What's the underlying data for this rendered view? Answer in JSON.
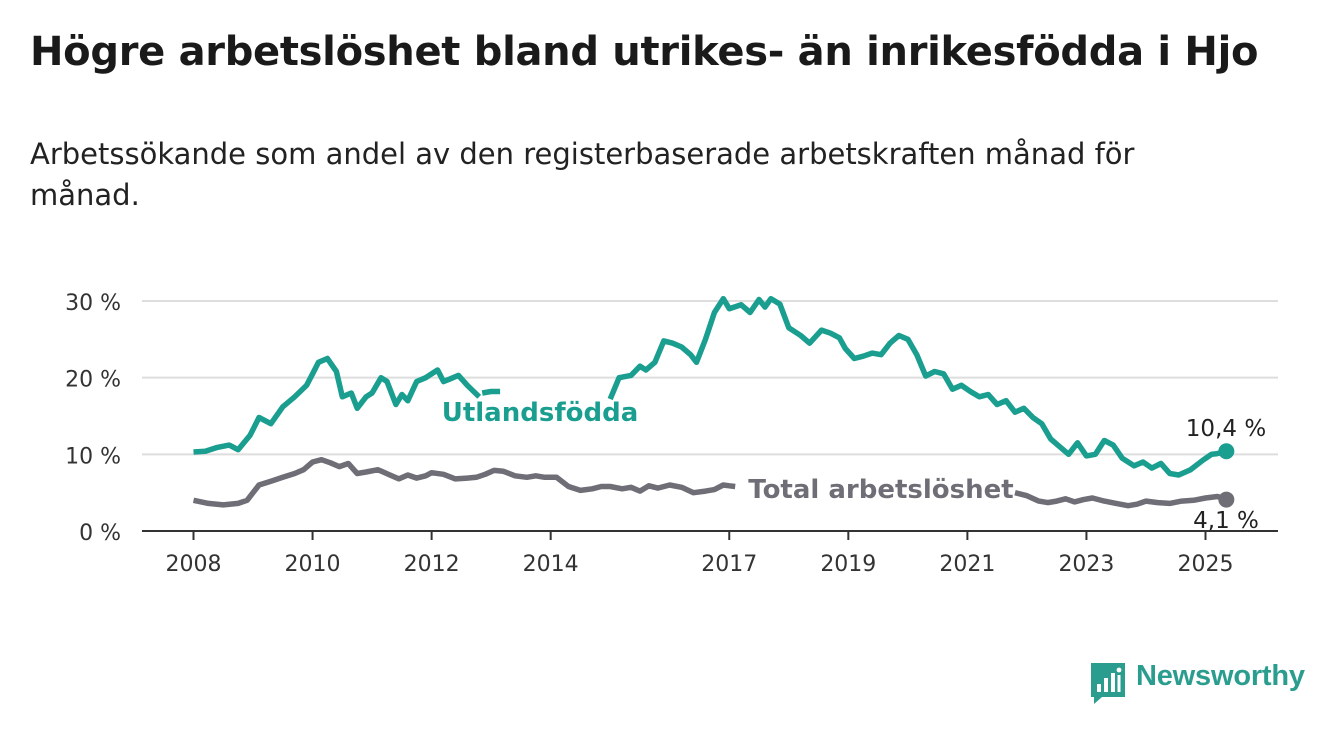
{
  "title": "Högre arbetslöshet bland utrikes- än inrikesfödda i Hjo",
  "subtitle": "Arbetssökande som andel av den registerbaserade arbetskraften månad för månad.",
  "brand": "Newsworthy",
  "colors": {
    "foreign_born": "#1a9e8f",
    "total": "#6f6e77",
    "grid": "#dedede",
    "axis": "#333333",
    "brand": "#2a9d8f"
  },
  "chart_data": {
    "type": "line",
    "title": "Högre arbetslöshet bland utrikes- än inrikesfödda i Hjo",
    "subtitle": "Arbetssökande som andel av den registerbaserade arbetskraften månad för månad.",
    "xlabel": "",
    "ylabel": "",
    "grid": true,
    "legend": "inline labels",
    "xlim": [
      2007.8,
      2026.2
    ],
    "ylim": [
      0,
      30
    ],
    "x_ticks": [
      2008,
      2010,
      2012,
      2014,
      2017,
      2019,
      2021,
      2023,
      2025
    ],
    "x_tick_labels": [
      "2008",
      "2010",
      "2012",
      "2014",
      "2017",
      "2019",
      "2021",
      "2023",
      "2025"
    ],
    "y_ticks": [
      0,
      10,
      20,
      30
    ],
    "y_tick_labels": [
      "0 %",
      "10 %",
      "20 %",
      "30 %"
    ],
    "series": [
      {
        "name": "Utlandsfödda",
        "end_label": "10,4 %",
        "points": [
          [
            2008.0,
            10.3
          ],
          [
            2008.2,
            10.4
          ],
          [
            2008.4,
            10.9
          ],
          [
            2008.6,
            11.2
          ],
          [
            2008.75,
            10.6
          ],
          [
            2008.95,
            12.5
          ],
          [
            2009.1,
            14.8
          ],
          [
            2009.3,
            14.0
          ],
          [
            2009.5,
            16.2
          ],
          [
            2009.7,
            17.5
          ],
          [
            2009.9,
            19.0
          ],
          [
            2010.0,
            20.5
          ],
          [
            2010.1,
            22.0
          ],
          [
            2010.25,
            22.5
          ],
          [
            2010.4,
            20.8
          ],
          [
            2010.5,
            17.5
          ],
          [
            2010.65,
            18.0
          ],
          [
            2010.75,
            16.0
          ],
          [
            2010.9,
            17.5
          ],
          [
            2011.0,
            18.0
          ],
          [
            2011.15,
            20.0
          ],
          [
            2011.25,
            19.5
          ],
          [
            2011.4,
            16.5
          ],
          [
            2011.5,
            17.8
          ],
          [
            2011.6,
            17.0
          ],
          [
            2011.75,
            19.5
          ],
          [
            2011.9,
            20.0
          ],
          [
            2012.0,
            20.5
          ],
          [
            2012.1,
            21.0
          ],
          [
            2012.2,
            19.5
          ],
          [
            2012.3,
            19.8
          ],
          [
            2012.45,
            20.3
          ],
          [
            2012.6,
            19.0
          ],
          [
            2012.8,
            17.5
          ],
          null,
          [
            2012.85,
            18.0
          ],
          [
            2013.0,
            18.2
          ],
          [
            2013.15,
            18.2
          ],
          null,
          [
            2015.0,
            17.2
          ],
          [
            2015.15,
            20.0
          ],
          [
            2015.35,
            20.3
          ],
          [
            2015.5,
            21.5
          ],
          [
            2015.6,
            21.0
          ],
          [
            2015.75,
            22.0
          ],
          [
            2015.9,
            24.8
          ],
          [
            2016.05,
            24.5
          ],
          [
            2016.2,
            24.0
          ],
          [
            2016.35,
            23.0
          ],
          [
            2016.45,
            22.0
          ],
          [
            2016.6,
            25.0
          ],
          [
            2016.75,
            28.5
          ],
          [
            2016.9,
            30.3
          ],
          [
            2017.0,
            29.0
          ],
          [
            2017.2,
            29.5
          ],
          [
            2017.35,
            28.5
          ],
          [
            2017.5,
            30.2
          ],
          [
            2017.6,
            29.2
          ],
          [
            2017.7,
            30.3
          ],
          [
            2017.85,
            29.6
          ],
          [
            2018.0,
            26.5
          ],
          [
            2018.2,
            25.5
          ],
          [
            2018.35,
            24.5
          ],
          [
            2018.55,
            26.2
          ],
          [
            2018.7,
            25.8
          ],
          [
            2018.85,
            25.2
          ],
          [
            2018.95,
            23.8
          ],
          [
            2019.1,
            22.5
          ],
          [
            2019.25,
            22.8
          ],
          [
            2019.4,
            23.2
          ],
          [
            2019.55,
            23.0
          ],
          [
            2019.7,
            24.5
          ],
          [
            2019.85,
            25.5
          ],
          [
            2020.0,
            25.0
          ],
          [
            2020.15,
            23.0
          ],
          [
            2020.3,
            20.2
          ],
          [
            2020.45,
            20.8
          ],
          [
            2020.6,
            20.5
          ],
          [
            2020.75,
            18.5
          ],
          [
            2020.9,
            19.0
          ],
          [
            2021.05,
            18.2
          ],
          [
            2021.2,
            17.5
          ],
          [
            2021.35,
            17.8
          ],
          [
            2021.5,
            16.5
          ],
          [
            2021.65,
            17.0
          ],
          [
            2021.8,
            15.5
          ],
          [
            2021.95,
            16.0
          ],
          [
            2022.1,
            14.8
          ],
          [
            2022.25,
            14.0
          ],
          [
            2022.4,
            12.0
          ],
          [
            2022.55,
            11.0
          ],
          [
            2022.7,
            10.0
          ],
          [
            2022.85,
            11.5
          ],
          [
            2023.0,
            9.8
          ],
          [
            2023.15,
            10.0
          ],
          [
            2023.3,
            11.8
          ],
          [
            2023.45,
            11.2
          ],
          [
            2023.6,
            9.5
          ],
          [
            2023.8,
            8.5
          ],
          [
            2023.95,
            9.0
          ],
          [
            2024.1,
            8.2
          ],
          [
            2024.25,
            8.8
          ],
          [
            2024.4,
            7.5
          ],
          [
            2024.55,
            7.3
          ],
          [
            2024.75,
            8.0
          ],
          [
            2024.95,
            9.2
          ],
          [
            2025.1,
            10.0
          ],
          [
            2025.2,
            10.1
          ],
          [
            2025.35,
            10.4
          ]
        ]
      },
      {
        "name": "Total arbetslöshet",
        "end_label": "4,1 %",
        "points": [
          [
            2008.0,
            4.0
          ],
          [
            2008.25,
            3.6
          ],
          [
            2008.5,
            3.4
          ],
          [
            2008.75,
            3.6
          ],
          [
            2008.9,
            4.0
          ],
          [
            2009.1,
            6.0
          ],
          [
            2009.3,
            6.5
          ],
          [
            2009.5,
            7.0
          ],
          [
            2009.7,
            7.5
          ],
          [
            2009.85,
            8.0
          ],
          [
            2010.0,
            9.0
          ],
          [
            2010.15,
            9.3
          ],
          [
            2010.3,
            8.9
          ],
          [
            2010.45,
            8.4
          ],
          [
            2010.6,
            8.8
          ],
          [
            2010.75,
            7.5
          ],
          [
            2010.9,
            7.7
          ],
          [
            2011.1,
            8.0
          ],
          [
            2011.3,
            7.3
          ],
          [
            2011.45,
            6.8
          ],
          [
            2011.6,
            7.3
          ],
          [
            2011.75,
            6.9
          ],
          [
            2011.9,
            7.2
          ],
          [
            2012.0,
            7.6
          ],
          [
            2012.2,
            7.4
          ],
          [
            2012.4,
            6.8
          ],
          [
            2012.6,
            6.9
          ],
          [
            2012.75,
            7.0
          ],
          [
            2012.9,
            7.4
          ],
          [
            2013.05,
            7.9
          ],
          [
            2013.2,
            7.8
          ],
          [
            2013.4,
            7.2
          ],
          [
            2013.6,
            7.0
          ],
          [
            2013.75,
            7.2
          ],
          [
            2013.9,
            7.0
          ],
          [
            2014.1,
            7.0
          ],
          [
            2014.3,
            5.8
          ],
          [
            2014.5,
            5.3
          ],
          [
            2014.7,
            5.5
          ],
          [
            2014.85,
            5.8
          ],
          [
            2015.0,
            5.8
          ],
          [
            2015.2,
            5.5
          ],
          [
            2015.35,
            5.7
          ],
          [
            2015.5,
            5.2
          ],
          [
            2015.65,
            5.9
          ],
          [
            2015.8,
            5.6
          ],
          [
            2016.0,
            6.0
          ],
          [
            2016.2,
            5.7
          ],
          [
            2016.4,
            5.0
          ],
          [
            2016.6,
            5.2
          ],
          [
            2016.75,
            5.4
          ],
          [
            2016.9,
            6.0
          ],
          [
            2017.0,
            5.9
          ],
          [
            2017.1,
            5.8
          ],
          null,
          [
            2021.8,
            5.0
          ],
          [
            2022.0,
            4.6
          ],
          [
            2022.2,
            3.9
          ],
          [
            2022.35,
            3.7
          ],
          [
            2022.5,
            3.9
          ],
          [
            2022.65,
            4.2
          ],
          [
            2022.8,
            3.8
          ],
          [
            2022.95,
            4.1
          ],
          [
            2023.1,
            4.3
          ],
          [
            2023.3,
            3.9
          ],
          [
            2023.5,
            3.6
          ],
          [
            2023.7,
            3.3
          ],
          [
            2023.85,
            3.5
          ],
          [
            2024.0,
            3.9
          ],
          [
            2024.2,
            3.7
          ],
          [
            2024.4,
            3.6
          ],
          [
            2024.6,
            3.9
          ],
          [
            2024.8,
            4.0
          ],
          [
            2025.0,
            4.3
          ],
          [
            2025.2,
            4.5
          ],
          [
            2025.35,
            4.1
          ]
        ]
      }
    ]
  }
}
